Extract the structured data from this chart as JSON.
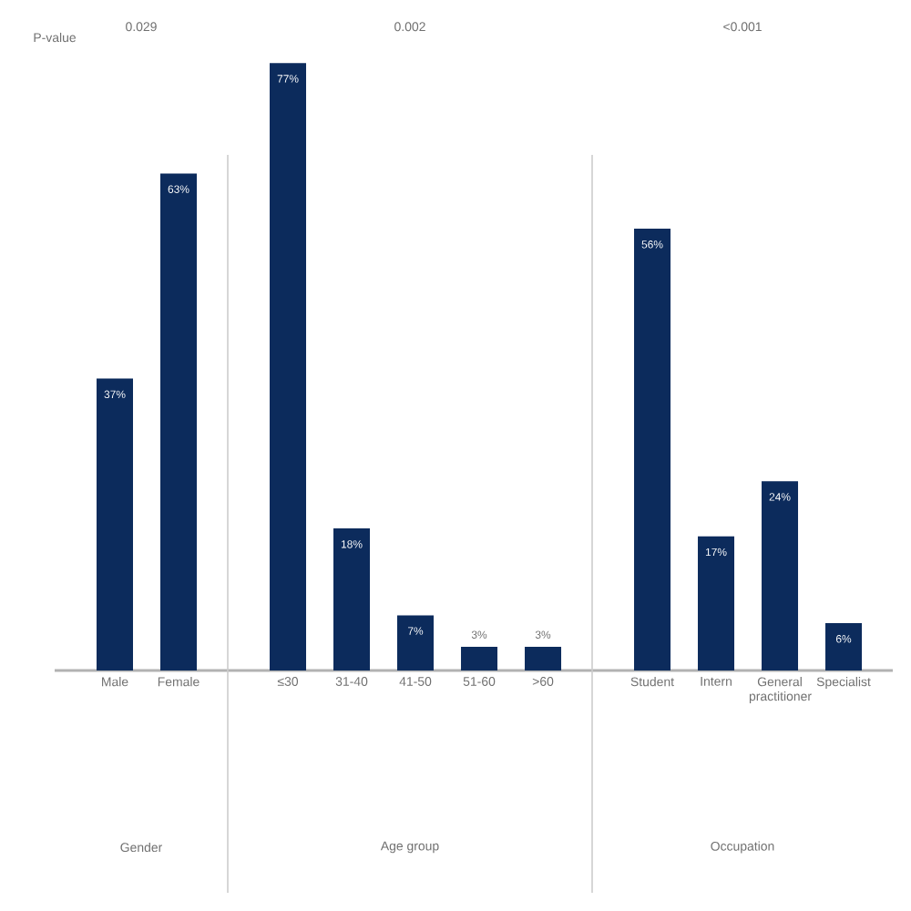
{
  "chart_data": [
    {
      "type": "bar",
      "title": "0.029",
      "xlabel": "Gender",
      "annotations": [
        "P-value"
      ],
      "categories": [
        "Male",
        "Female"
      ],
      "values": [
        37,
        63
      ],
      "value_labels": [
        "37%",
        "63%"
      ],
      "color": "#0c2b5c",
      "tick_labels": "x"
    },
    {
      "type": "bar",
      "title": "0.002",
      "xlabel": "Age group",
      "categories": [
        "≤30",
        "31-40",
        "41-50",
        "51-60",
        ">60"
      ],
      "values": [
        77,
        18,
        7,
        3,
        3
      ],
      "value_labels": [
        "77%",
        "18%",
        "7%",
        "3%",
        "3%"
      ],
      "color": "#0c2b5c",
      "tick_labels": "x"
    },
    {
      "type": "bar",
      "title": "<0.001",
      "xlabel": "Occupation",
      "categories": [
        "Student",
        "Intern",
        "General practitioner",
        "Specialist"
      ],
      "values": [
        56,
        17,
        24,
        6
      ],
      "value_labels": [
        "56%",
        "17%",
        "24%",
        "6%"
      ],
      "color": "#0c2b5c",
      "tick_labels": "x"
    }
  ]
}
